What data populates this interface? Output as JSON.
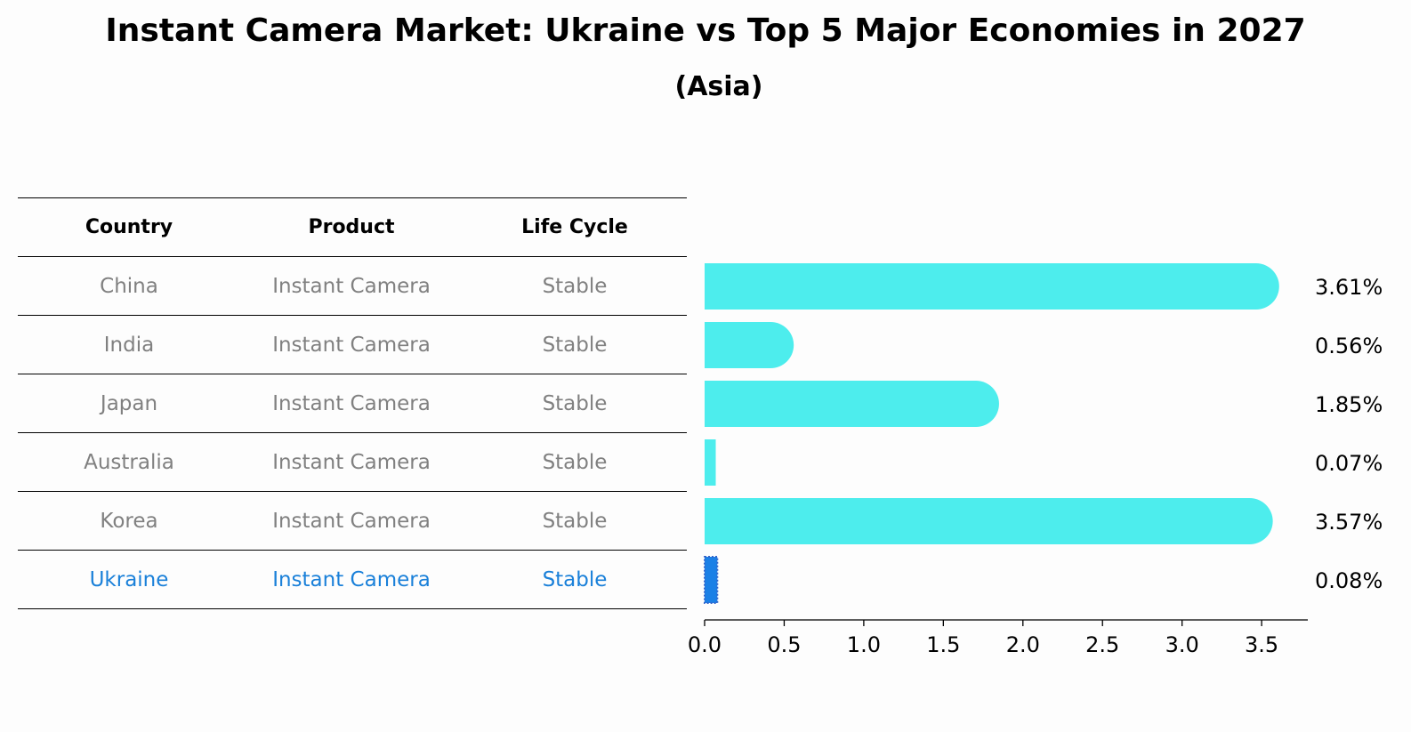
{
  "title": "Instant Camera Market: Ukraine vs Top 5 Major Economies in 2027",
  "subtitle": "(Asia)",
  "table": {
    "headers": [
      "Country",
      "Product",
      "Life Cycle"
    ],
    "rows": [
      {
        "country": "China",
        "product": "Instant Camera",
        "life_cycle": "Stable"
      },
      {
        "country": "India",
        "product": "Instant Camera",
        "life_cycle": "Stable"
      },
      {
        "country": "Japan",
        "product": "Instant Camera",
        "life_cycle": "Stable"
      },
      {
        "country": "Australia",
        "product": "Instant Camera",
        "life_cycle": "Stable"
      },
      {
        "country": "Korea",
        "product": "Instant Camera",
        "life_cycle": "Stable"
      },
      {
        "country": "Ukraine",
        "product": "Instant Camera",
        "life_cycle": "Stable"
      }
    ],
    "highlight_row": "Ukraine"
  },
  "colors": {
    "bar": "#4deded",
    "highlight_bar": "#1a80e6",
    "highlight_text": "#1a80d9",
    "row_text": "#808080"
  },
  "chart_data": {
    "type": "bar",
    "orientation": "horizontal",
    "categories": [
      "China",
      "India",
      "Japan",
      "Australia",
      "Korea",
      "Ukraine"
    ],
    "values": [
      3.61,
      0.56,
      1.85,
      0.07,
      3.57,
      0.08
    ],
    "value_labels": [
      "3.61%",
      "0.56%",
      "1.85%",
      "0.07%",
      "3.57%",
      "0.08%"
    ],
    "xlim": [
      0,
      3.79
    ],
    "xticks": [
      0.0,
      0.5,
      1.0,
      1.5,
      2.0,
      2.5,
      3.0,
      3.5
    ],
    "xtick_labels": [
      "0.0",
      "0.5",
      "1.0",
      "1.5",
      "2.0",
      "2.5",
      "3.0",
      "3.5"
    ],
    "grid": false
  }
}
